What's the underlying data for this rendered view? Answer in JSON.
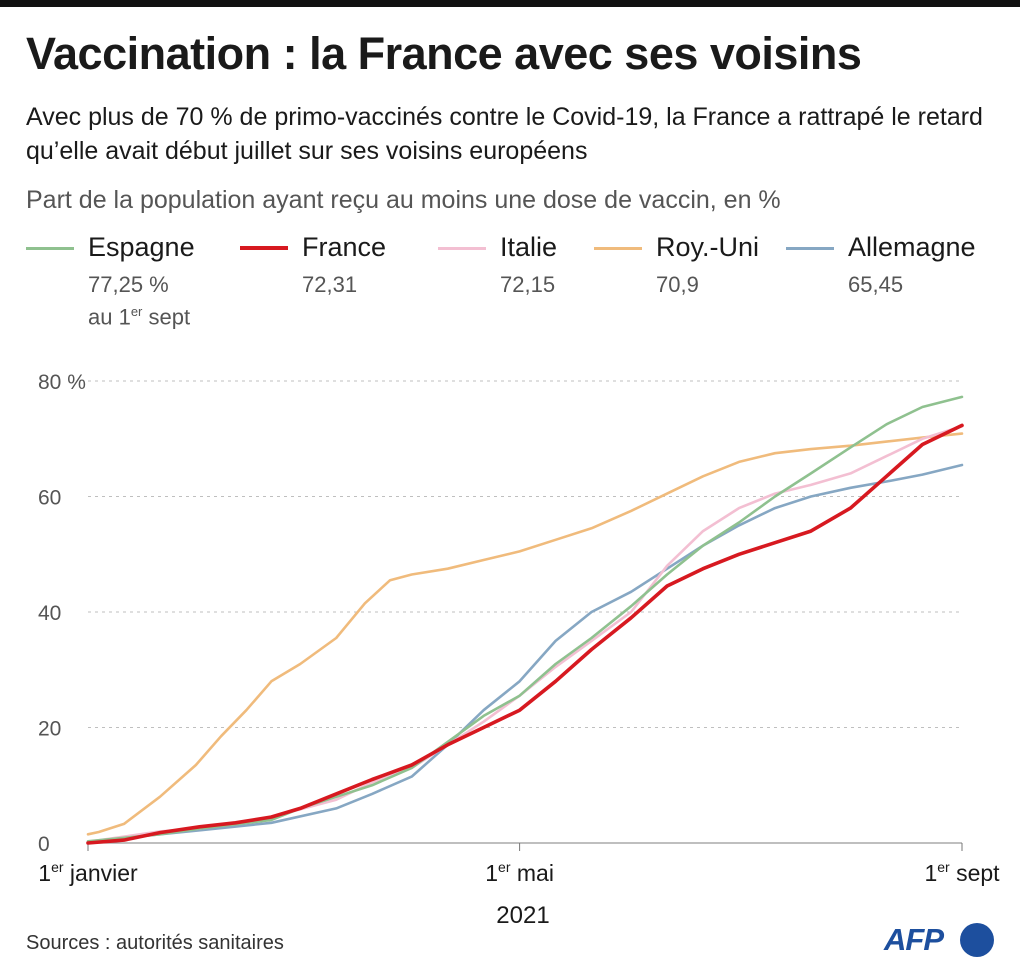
{
  "header": {
    "title": "Vaccination : la France avec ses voisins",
    "subtitle": "Avec plus de 70 % de primo-vaccinés contre le Covid-19, la France a rattrapé le retard qu’elle avait début juillet sur ses voisins européens",
    "measure": "Part de la population ayant reçu au moins une dose de vaccin, en %"
  },
  "legend": {
    "note_prefix": "au 1",
    "note_sup": "er",
    "note_suffix": " sept",
    "items": [
      {
        "name": "Espagne",
        "value": "77,25 %",
        "color": "#8fc18f"
      },
      {
        "name": "France",
        "value": "72,31",
        "color": "#d71920"
      },
      {
        "name": "Italie",
        "value": "72,15",
        "color": "#f3bfd2"
      },
      {
        "name": "Roy.-Uni",
        "value": "70,9",
        "color": "#f0bb7c"
      },
      {
        "name": "Allemagne",
        "value": "65,45",
        "color": "#86a7c3"
      }
    ]
  },
  "footer": {
    "source": "Sources : autorités sanitaires",
    "logo": "AFP"
  },
  "chart_data": {
    "type": "line",
    "x_unit": "day of 2021",
    "xlim": [
      "2021-01-01",
      "2021-09-01"
    ],
    "ylim": [
      0,
      80
    ],
    "y_ticks": [
      0,
      20,
      40,
      60,
      80
    ],
    "y_tick_labels": [
      "0",
      "20",
      "40",
      "60",
      "80 %"
    ],
    "grid": true,
    "x_ticks": [
      {
        "date": "2021-01-01",
        "label_prefix": "1",
        "label_sup": "er",
        "label_suffix": " janvier"
      },
      {
        "date": "2021-05-01",
        "label_prefix": "1",
        "label_sup": "er",
        "label_suffix": " mai"
      },
      {
        "date": "2021-09-01",
        "label_prefix": "1",
        "label_sup": "er",
        "label_suffix": " sept"
      }
    ],
    "xlabel": "2021",
    "series": [
      {
        "name": "Roy.-Uni",
        "color": "#f0bb7c",
        "x": [
          "2021-01-01",
          "2021-01-04",
          "2021-01-11",
          "2021-01-21",
          "2021-01-31",
          "2021-02-07",
          "2021-02-14",
          "2021-02-21",
          "2021-03-01",
          "2021-03-11",
          "2021-03-19",
          "2021-03-26",
          "2021-04-01",
          "2021-04-11",
          "2021-04-21",
          "2021-05-01",
          "2021-05-11",
          "2021-05-21",
          "2021-06-01",
          "2021-06-11",
          "2021-06-21",
          "2021-07-01",
          "2021-07-11",
          "2021-07-21",
          "2021-08-01",
          "2021-08-11",
          "2021-08-21",
          "2021-09-01"
        ],
        "y": [
          1.5,
          1.9,
          3.3,
          8.0,
          13.5,
          18.5,
          23.0,
          28.0,
          31.0,
          35.5,
          41.5,
          45.5,
          46.5,
          47.5,
          49.0,
          50.5,
          52.5,
          54.5,
          57.5,
          60.5,
          63.5,
          66.0,
          67.5,
          68.2,
          68.8,
          69.5,
          70.2,
          70.9
        ]
      },
      {
        "name": "Allemagne",
        "color": "#86a7c3",
        "x": [
          "2021-01-01",
          "2021-01-21",
          "2021-02-01",
          "2021-02-21",
          "2021-03-11",
          "2021-03-21",
          "2021-04-01",
          "2021-04-11",
          "2021-04-21",
          "2021-05-01",
          "2021-05-11",
          "2021-05-21",
          "2021-06-01",
          "2021-06-11",
          "2021-06-21",
          "2021-07-01",
          "2021-07-11",
          "2021-07-21",
          "2021-08-01",
          "2021-08-11",
          "2021-08-21",
          "2021-09-01"
        ],
        "y": [
          0.2,
          1.5,
          2.2,
          3.5,
          6.0,
          8.5,
          11.5,
          17.0,
          23.0,
          28.0,
          35.0,
          40.0,
          43.5,
          47.5,
          51.5,
          55.0,
          58.0,
          60.0,
          61.5,
          62.6,
          63.8,
          65.45
        ]
      },
      {
        "name": "Italie",
        "color": "#f3bfd2",
        "x": [
          "2021-01-01",
          "2021-01-21",
          "2021-02-01",
          "2021-02-21",
          "2021-03-11",
          "2021-03-21",
          "2021-04-01",
          "2021-04-11",
          "2021-04-21",
          "2021-05-01",
          "2021-05-11",
          "2021-05-21",
          "2021-06-01",
          "2021-06-11",
          "2021-06-21",
          "2021-07-01",
          "2021-07-11",
          "2021-07-21",
          "2021-08-01",
          "2021-08-11",
          "2021-08-21",
          "2021-09-01"
        ],
        "y": [
          0.2,
          2.0,
          2.5,
          4.5,
          7.5,
          10.5,
          13.0,
          17.0,
          21.0,
          25.5,
          30.5,
          35.0,
          40.0,
          48.0,
          54.0,
          58.0,
          60.5,
          62.0,
          64.0,
          67.0,
          70.0,
          72.15
        ]
      },
      {
        "name": "Espagne",
        "color": "#8fc18f",
        "x": [
          "2021-01-01",
          "2021-01-21",
          "2021-02-01",
          "2021-02-21",
          "2021-03-01",
          "2021-03-11",
          "2021-03-21",
          "2021-04-01",
          "2021-04-11",
          "2021-04-21",
          "2021-05-01",
          "2021-05-11",
          "2021-05-21",
          "2021-06-01",
          "2021-06-11",
          "2021-06-21",
          "2021-07-01",
          "2021-07-11",
          "2021-07-21",
          "2021-08-01",
          "2021-08-11",
          "2021-08-21",
          "2021-09-01"
        ],
        "y": [
          0.3,
          1.5,
          2.5,
          4.0,
          6.0,
          8.0,
          10.0,
          13.0,
          17.5,
          22.0,
          25.5,
          31.0,
          35.5,
          41.0,
          46.5,
          51.5,
          55.5,
          60.0,
          64.0,
          68.5,
          72.5,
          75.5,
          77.25
        ]
      },
      {
        "name": "France",
        "color": "#d71920",
        "x": [
          "2021-01-01",
          "2021-01-11",
          "2021-01-21",
          "2021-02-01",
          "2021-02-11",
          "2021-02-21",
          "2021-03-01",
          "2021-03-11",
          "2021-03-21",
          "2021-04-01",
          "2021-04-11",
          "2021-04-21",
          "2021-05-01",
          "2021-05-11",
          "2021-05-21",
          "2021-06-01",
          "2021-06-11",
          "2021-06-21",
          "2021-07-01",
          "2021-07-11",
          "2021-07-21",
          "2021-08-01",
          "2021-08-11",
          "2021-08-21",
          "2021-09-01"
        ],
        "y": [
          0.0,
          0.5,
          1.8,
          2.8,
          3.5,
          4.5,
          6.0,
          8.5,
          11.0,
          13.5,
          17.0,
          20.0,
          23.0,
          28.0,
          33.5,
          39.0,
          44.5,
          47.5,
          50.0,
          52.0,
          54.0,
          58.0,
          63.5,
          69.0,
          72.31
        ]
      }
    ]
  }
}
